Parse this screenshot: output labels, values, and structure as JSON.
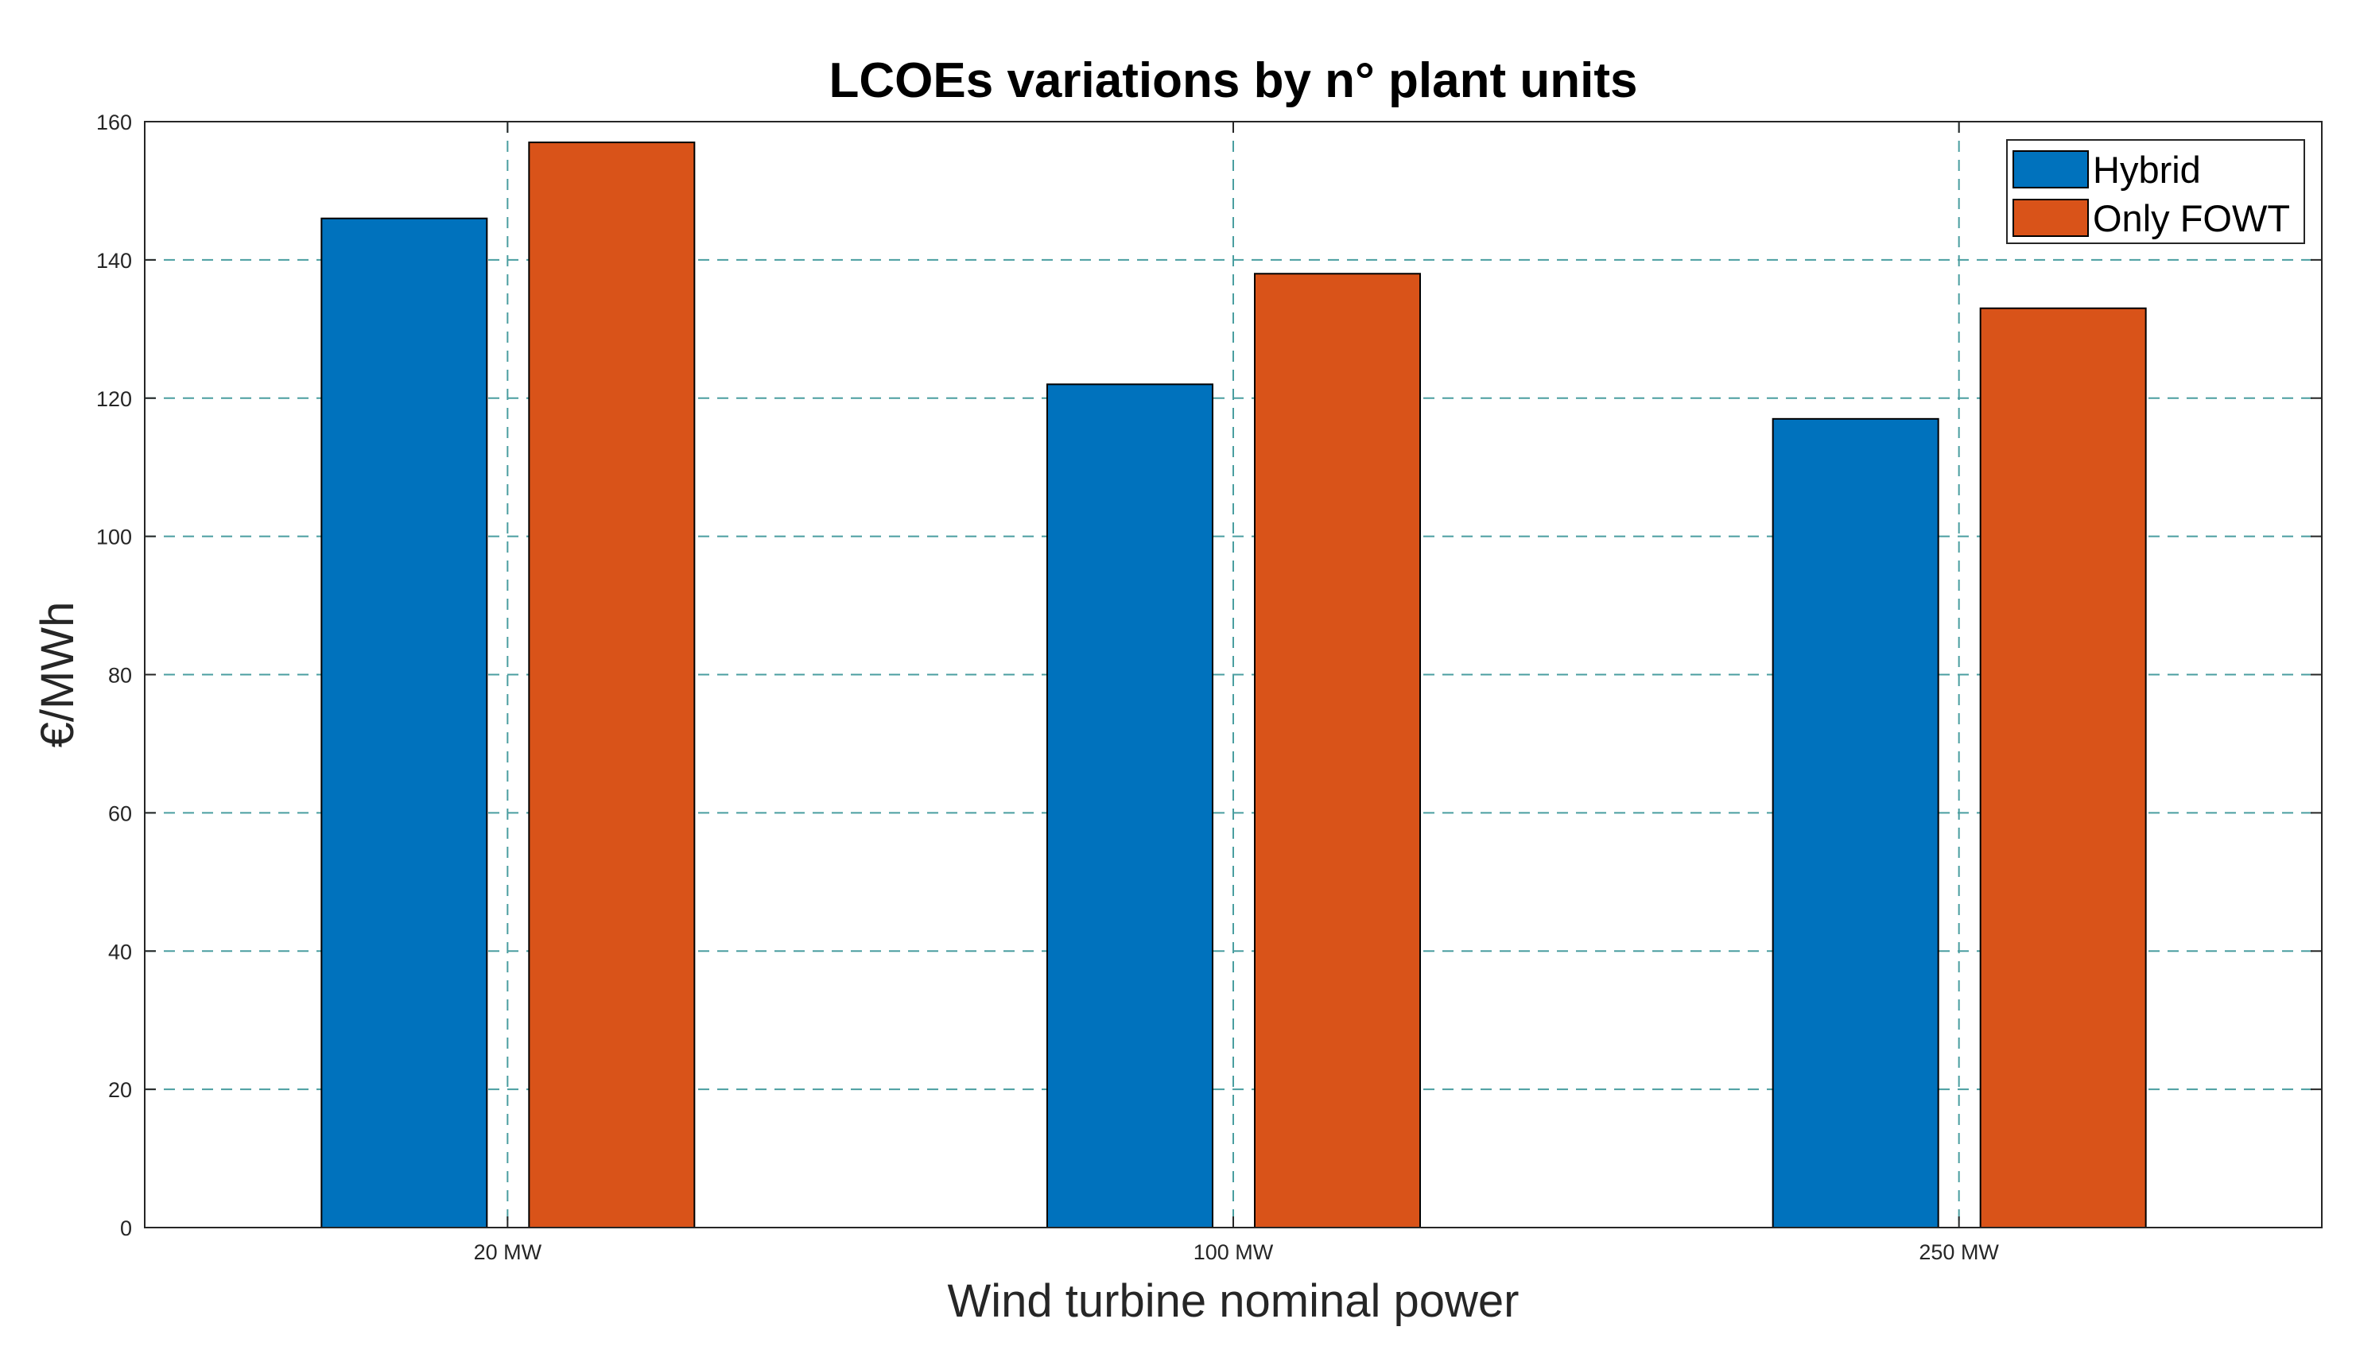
{
  "chart_data": {
    "type": "bar",
    "title": "LCOEs variations by n° plant units",
    "xlabel": "Wind turbine nominal power",
    "ylabel": "€/MWh",
    "categories": [
      "20 MW",
      "100 MW",
      "250 MW"
    ],
    "series": [
      {
        "name": "Hybrid",
        "color": "#0072BD",
        "values": [
          146,
          122,
          117
        ]
      },
      {
        "name": "Only FOWT",
        "color": "#D95319",
        "values": [
          157,
          138,
          133
        ]
      }
    ],
    "ylim": [
      0,
      160
    ],
    "yticks": [
      0,
      20,
      40,
      60,
      80,
      100,
      120,
      140,
      160
    ],
    "grid": true,
    "grid_style": "dashed",
    "grid_color": "#4A9EA0",
    "legend_position": "top-right"
  }
}
